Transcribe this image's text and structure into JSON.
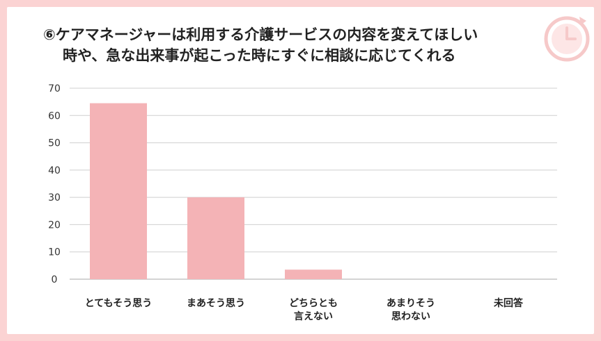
{
  "title": {
    "line1": "⑥ケアマネージャーは利用する介護サービスの内容を変えてほしい",
    "line2": "時や、急な出来事が起こった時にすぐに相談に応じてくれる"
  },
  "decor": {
    "icon": "clock-icon"
  },
  "colors": {
    "bar": "#f4b3b6",
    "background": "#fbd3d3",
    "grid": "#cfcfcf"
  },
  "chart_data": {
    "type": "bar",
    "categories": [
      [
        "とてもそう思う"
      ],
      [
        "まあそう思う"
      ],
      [
        "どちらとも",
        "言えない"
      ],
      [
        "あまりそう",
        "思わない"
      ],
      [
        "未回答"
      ]
    ],
    "values": [
      64.5,
      30,
      3.5,
      0,
      0
    ],
    "ylim": [
      0,
      70
    ],
    "yticks": [
      0,
      10,
      20,
      30,
      40,
      50,
      60,
      70
    ],
    "grid": true,
    "legend": "none"
  }
}
